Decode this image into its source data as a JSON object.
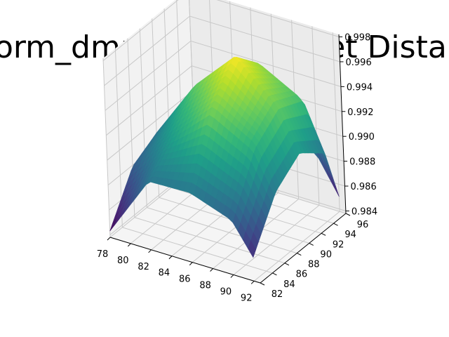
{
  "chart_data": {
    "type": "surface",
    "title": "norm_dmp_on JA Frechet Distance",
    "xlabel": "",
    "ylabel": "",
    "zlabel": "",
    "colormap": "viridis",
    "x_ticks": [
      78,
      80,
      82,
      84,
      86,
      88,
      90,
      92
    ],
    "y_ticks": [
      82,
      84,
      86,
      88,
      90,
      92,
      94,
      96
    ],
    "z_ticks": [
      "0.984",
      "0.986",
      "0.988",
      "0.990",
      "0.992",
      "0.994",
      "0.996",
      "0.998"
    ],
    "xlim": [
      78,
      92.6
    ],
    "ylim": [
      82,
      96
    ],
    "zlim": [
      0.9838,
      0.9982
    ],
    "x": [
      78,
      82,
      86,
      90,
      92
    ],
    "y": [
      82,
      86,
      90,
      94,
      96
    ],
    "z": [
      [
        0.9843,
        0.9893,
        0.9894,
        0.9882,
        0.9857
      ],
      [
        0.9879,
        0.9913,
        0.9945,
        0.9926,
        0.9894
      ],
      [
        0.989,
        0.9939,
        0.9972,
        0.9942,
        0.9909
      ],
      [
        0.9881,
        0.9928,
        0.995,
        0.9933,
        0.9893
      ],
      [
        0.9841,
        0.9884,
        0.9897,
        0.9878,
        0.985
      ]
    ],
    "grid": true
  }
}
